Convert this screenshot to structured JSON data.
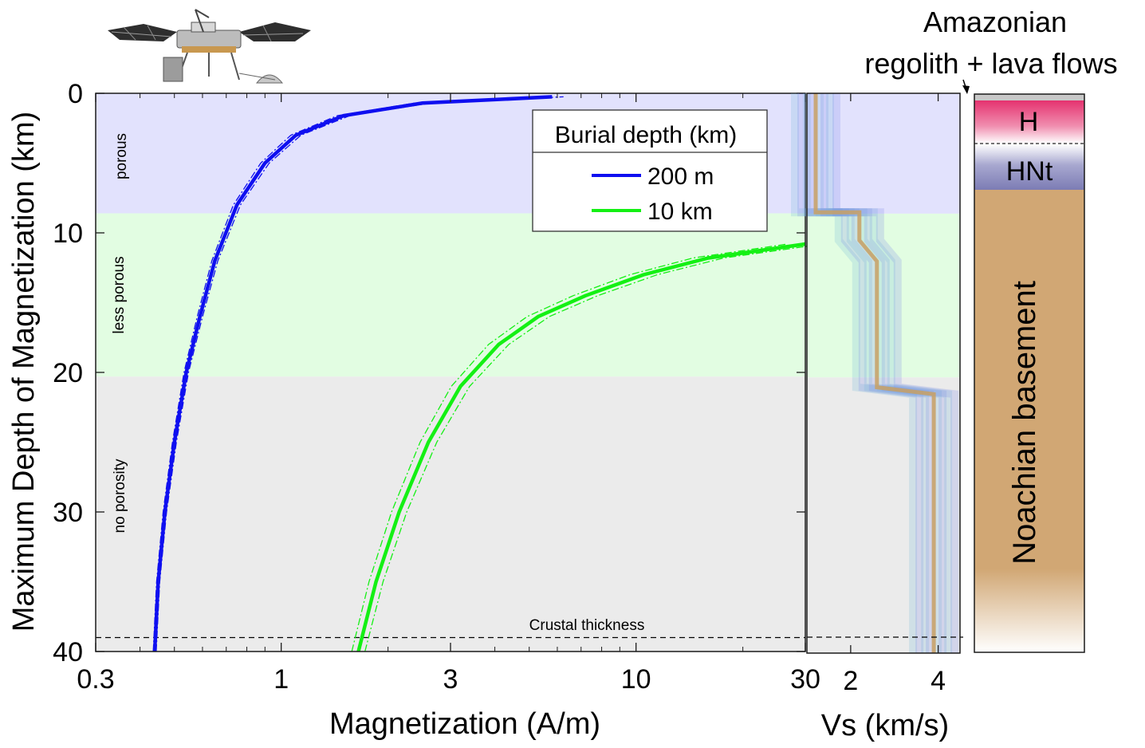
{
  "chart_data": [
    {
      "type": "line",
      "xlabel": "Magnetization (A/m)",
      "ylabel": "Maximum Depth of Magnetization (km)",
      "x_scale": "log",
      "xlim": [
        0.3,
        30
      ],
      "ylim": [
        0,
        40
      ],
      "y_inverted": true,
      "x_ticks": [
        "0.3",
        "1",
        "3",
        "10",
        "30"
      ],
      "y_ticks": [
        "0",
        "10",
        "20",
        "30",
        "40"
      ],
      "zones": [
        {
          "label": "porous",
          "from": 0,
          "to": 8.6,
          "color": "#e2e2fd"
        },
        {
          "label": "less porous",
          "from": 8.6,
          "to": 20.3,
          "color": "#e2fde2"
        },
        {
          "label": "no porosity",
          "from": 20.3,
          "to": 40,
          "color": "#ebebeb"
        }
      ],
      "annotation": {
        "label": "Crustal thickness",
        "depth": 39
      },
      "legend": {
        "title": "Burial depth (km)",
        "position": "top-center"
      },
      "series": [
        {
          "name": "200 m",
          "color": "#0f0ff0",
          "x": [
            0.44,
            0.45,
            0.47,
            0.5,
            0.54,
            0.59,
            0.65,
            0.75,
            0.9,
            1.1,
            1.5,
            2.5,
            5.8
          ],
          "y": [
            40,
            35,
            30,
            25,
            20,
            16,
            12,
            8,
            5,
            3,
            1.6,
            0.7,
            0.25
          ]
        },
        {
          "name": "10 km",
          "color": "#14f014",
          "x": [
            1.65,
            1.85,
            2.15,
            2.6,
            3.2,
            4.1,
            5.3,
            7.2,
            10.5,
            16,
            30
          ],
          "y": [
            40,
            35,
            30,
            25,
            21,
            18,
            16,
            14.5,
            13,
            11.8,
            10.8
          ]
        }
      ]
    },
    {
      "type": "line",
      "xlabel": "Vs (km/s)",
      "x_ticks": [
        "2",
        "4"
      ],
      "xlim": [
        1,
        4.5
      ],
      "ylim": [
        0,
        40
      ],
      "series": [
        {
          "color": "#c8a064",
          "x": [
            1.2,
            1.2,
            2.2,
            2.2,
            2.6,
            2.6,
            3.9,
            3.9
          ],
          "y": [
            0,
            8.5,
            8.5,
            10.5,
            12,
            21,
            21.5,
            40
          ]
        }
      ]
    }
  ],
  "stratigraphy": {
    "top_label_1": "Amazonian",
    "top_label_2": "regolith + lava flows",
    "layers": [
      {
        "label": "H",
        "color": "#e8407a"
      },
      {
        "label": "HNt",
        "color": "#8c8cbc"
      },
      {
        "label": "Noachian basement",
        "color": "#d4aa78"
      }
    ]
  },
  "lander": {
    "icon": "insight-lander-icon"
  }
}
